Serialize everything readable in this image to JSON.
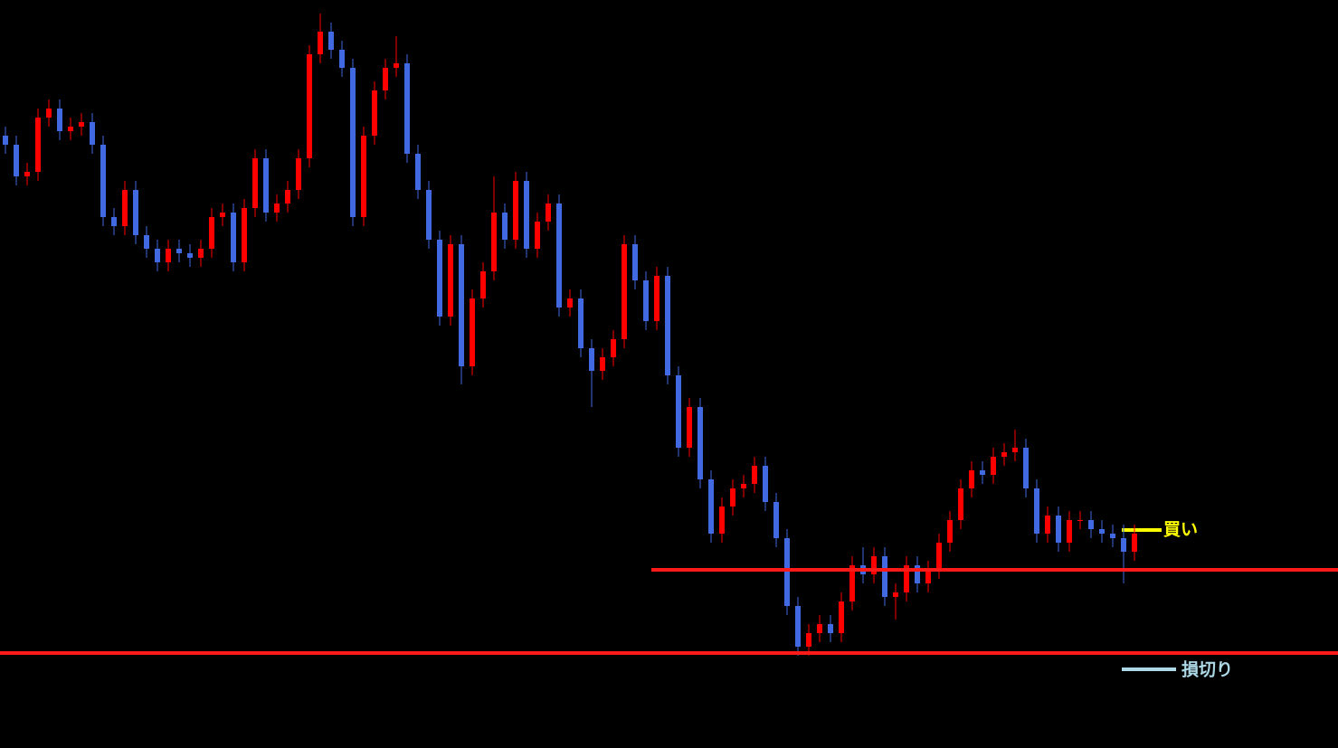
{
  "chart_data": {
    "type": "candlestick",
    "ylim": [
      0,
      827
    ],
    "up_color": "#ff0000",
    "down_color": "#4169e1",
    "open": [
      677,
      667,
      632,
      637,
      697,
      707,
      682,
      687,
      692,
      667,
      587,
      577,
      617,
      567,
      552,
      537,
      552,
      547,
      542,
      552,
      587,
      592,
      537,
      597,
      652,
      592,
      602,
      617,
      652,
      767,
      792,
      772,
      752,
      587,
      677,
      727,
      752,
      757,
      657,
      617,
      562,
      477,
      557,
      422,
      497,
      527,
      592,
      562,
      627,
      552,
      582,
      602,
      487,
      497,
      442,
      417,
      432,
      452,
      557,
      517,
      472,
      522,
      412,
      332,
      377,
      297,
      237,
      267,
      287,
      292,
      312,
      272,
      232,
      157,
      112,
      127,
      137,
      127,
      162,
      202,
      192,
      212,
      167,
      172,
      202,
      182,
      197,
      227,
      252,
      287,
      307,
      302,
      322,
      327,
      332,
      287,
      237,
      257,
      227,
      252,
      252,
      242,
      237,
      232,
      217
    ],
    "high": [
      687,
      677,
      647,
      707,
      717,
      717,
      697,
      702,
      702,
      677,
      597,
      627,
      627,
      577,
      562,
      562,
      562,
      557,
      562,
      597,
      602,
      602,
      607,
      662,
      662,
      612,
      627,
      662,
      777,
      812,
      802,
      782,
      762,
      687,
      737,
      762,
      787,
      767,
      667,
      627,
      572,
      567,
      567,
      507,
      537,
      632,
      602,
      637,
      637,
      592,
      612,
      612,
      507,
      507,
      452,
      442,
      462,
      567,
      567,
      527,
      532,
      532,
      422,
      387,
      387,
      307,
      277,
      297,
      302,
      322,
      322,
      282,
      242,
      167,
      137,
      147,
      147,
      172,
      212,
      222,
      222,
      222,
      182,
      212,
      212,
      207,
      237,
      262,
      297,
      317,
      317,
      332,
      337,
      352,
      342,
      297,
      267,
      267,
      262,
      262,
      262,
      252,
      247,
      247,
      247
    ],
    "low": [
      657,
      622,
      622,
      627,
      687,
      672,
      672,
      677,
      657,
      577,
      567,
      567,
      557,
      542,
      527,
      527,
      537,
      532,
      532,
      542,
      577,
      527,
      527,
      587,
      582,
      582,
      592,
      607,
      642,
      757,
      762,
      742,
      577,
      577,
      667,
      717,
      742,
      647,
      607,
      552,
      467,
      467,
      402,
      412,
      487,
      517,
      552,
      552,
      542,
      542,
      572,
      477,
      477,
      432,
      377,
      407,
      422,
      442,
      507,
      462,
      462,
      402,
      322,
      322,
      287,
      227,
      227,
      257,
      277,
      282,
      262,
      222,
      147,
      102,
      102,
      117,
      117,
      117,
      152,
      182,
      182,
      157,
      142,
      162,
      172,
      172,
      187,
      217,
      242,
      277,
      292,
      292,
      312,
      317,
      277,
      227,
      227,
      217,
      217,
      242,
      232,
      227,
      222,
      182,
      207
    ],
    "close": [
      667,
      632,
      637,
      697,
      707,
      682,
      687,
      692,
      667,
      587,
      577,
      617,
      567,
      552,
      537,
      552,
      547,
      542,
      552,
      587,
      592,
      537,
      597,
      652,
      592,
      602,
      617,
      652,
      767,
      792,
      772,
      752,
      587,
      677,
      727,
      752,
      757,
      657,
      617,
      562,
      477,
      557,
      422,
      497,
      527,
      592,
      562,
      627,
      552,
      582,
      602,
      487,
      497,
      442,
      417,
      432,
      452,
      557,
      517,
      472,
      522,
      412,
      332,
      377,
      297,
      237,
      267,
      287,
      292,
      312,
      272,
      232,
      157,
      112,
      127,
      137,
      127,
      162,
      202,
      192,
      212,
      167,
      172,
      202,
      182,
      197,
      227,
      252,
      287,
      307,
      302,
      322,
      327,
      332,
      287,
      237,
      257,
      227,
      252,
      252,
      242,
      237,
      232,
      217,
      237
    ],
    "levels": [
      {
        "value": 197,
        "color": "#ff1a1a"
      },
      {
        "value": 105,
        "color": "#ff1a1a"
      }
    ],
    "annotations": [
      {
        "text": "買い",
        "color": "#ffff00"
      },
      {
        "text": "損切り",
        "color": "#add8e6"
      }
    ]
  }
}
